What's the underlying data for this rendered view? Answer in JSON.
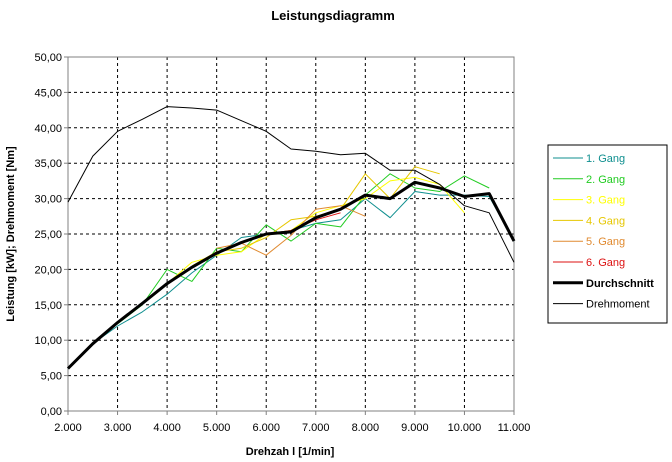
{
  "chart_data": {
    "type": "line",
    "title": "Leistungsdiagramm",
    "xlabel": "Drehzah l [1/min]",
    "ylabel": "Leistung [kW]; Drehmoment [Nm]",
    "xlim": [
      2000,
      11000
    ],
    "ylim": [
      0,
      50
    ],
    "grid": true,
    "legend_position": "right",
    "x_ticks": [
      2000,
      3000,
      4000,
      5000,
      6000,
      7000,
      8000,
      9000,
      10000,
      11000
    ],
    "x_tick_labels": [
      "2.000",
      "3.000",
      "4.000",
      "5.000",
      "6.000",
      "7.000",
      "8.000",
      "9.000",
      "10.000",
      "11.000"
    ],
    "y_ticks": [
      0,
      5,
      10,
      15,
      20,
      25,
      30,
      35,
      40,
      45,
      50
    ],
    "y_tick_labels": [
      "0,00",
      "5,00",
      "10,00",
      "15,00",
      "20,00",
      "25,00",
      "30,00",
      "35,00",
      "40,00",
      "45,00",
      "50,00"
    ],
    "series": [
      {
        "name": "1. Gang",
        "color": "#0f8f8f",
        "width": 1,
        "x": [
          2000,
          2500,
          3000,
          3500,
          4000,
          4500,
          5000,
          5500,
          6000,
          6500,
          7000,
          7500,
          8000,
          8500,
          9000,
          9500,
          10000,
          10500,
          11000
        ],
        "y": [
          6,
          9.5,
          12,
          14,
          16.5,
          19.5,
          22,
          24.5,
          25,
          25.5,
          26.5,
          27,
          30,
          27.3,
          31,
          30.5,
          30.5,
          30.3,
          24
        ]
      },
      {
        "name": "2. Gang",
        "color": "#22cc22",
        "width": 1,
        "x": [
          3000,
          3500,
          4000,
          4500,
          5000,
          5500,
          6000,
          6500,
          7000,
          7500,
          8000,
          8500,
          9000,
          9500,
          10000,
          10500
        ],
        "y": [
          12.3,
          15,
          20,
          18.3,
          23,
          22.5,
          26.3,
          24,
          26.5,
          26,
          30.5,
          33.5,
          31.5,
          31,
          33.2,
          31.5
        ]
      },
      {
        "name": "3. Gang",
        "color": "#ffff00",
        "width": 1,
        "x": [
          4000,
          4500,
          5000,
          5500,
          6000,
          6500,
          7000,
          7500,
          8000,
          8500,
          9000,
          9500,
          10000
        ],
        "y": [
          18,
          21,
          22,
          22.5,
          25,
          25.5,
          28,
          29,
          30,
          32.5,
          33,
          32,
          28
        ]
      },
      {
        "name": "4. Gang",
        "color": "#e6c700",
        "width": 1,
        "x": [
          4500,
          5000,
          5500,
          6000,
          6500,
          7000,
          7500,
          8000,
          8500,
          9000,
          9500
        ],
        "y": [
          20.5,
          22.5,
          23,
          24.5,
          27,
          27.5,
          28.5,
          33.5,
          30,
          34.5,
          33.5
        ]
      },
      {
        "name": "5. Gang",
        "color": "#e08a30",
        "width": 1,
        "x": [
          5000,
          5500,
          6000,
          6500,
          7000,
          7500,
          8000
        ],
        "y": [
          23,
          23.7,
          22,
          24.8,
          28.5,
          29,
          27.5
        ]
      },
      {
        "name": "6. Gang",
        "color": "#dd1111",
        "width": 1,
        "x": [
          6000,
          6500,
          7000,
          7500
        ],
        "y": [
          25,
          25.5,
          27,
          28
        ]
      },
      {
        "name": "Durchschnitt",
        "color": "#000000",
        "width": 3,
        "x": [
          2000,
          2500,
          3000,
          3500,
          4000,
          4500,
          5000,
          5500,
          6000,
          6500,
          7000,
          7500,
          8000,
          8500,
          9000,
          9500,
          10000,
          10500,
          11000
        ],
        "y": [
          6,
          9.5,
          12.5,
          15.2,
          18,
          20.3,
          22.3,
          23.8,
          25,
          25.3,
          27.3,
          28.5,
          30.5,
          30,
          32.3,
          31.5,
          30.3,
          30.7,
          24
        ]
      },
      {
        "name": "Drehmoment",
        "color": "#000000",
        "width": 1,
        "x": [
          2000,
          2500,
          3000,
          3500,
          4000,
          4500,
          5000,
          5500,
          6000,
          6500,
          7000,
          7500,
          8000,
          8500,
          9000,
          9500,
          10000,
          10500,
          11000
        ],
        "y": [
          29.5,
          36,
          39.5,
          41.2,
          43,
          42.8,
          42.5,
          41,
          39.5,
          37,
          36.7,
          36.2,
          36.4,
          34,
          34,
          32,
          29,
          28,
          21
        ]
      }
    ]
  }
}
